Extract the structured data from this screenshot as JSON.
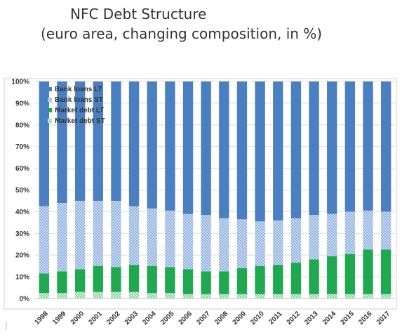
{
  "chart_data": {
    "type": "bar",
    "stacked": true,
    "title": "NFC Debt Structure",
    "subtitle": "(euro area, changing composition, in %)",
    "xlabel": "",
    "ylabel": "",
    "ylim": [
      0,
      100
    ],
    "yticks": [
      "0%",
      "10%",
      "20%",
      "30%",
      "40%",
      "50%",
      "60%",
      "70%",
      "80%",
      "90%",
      "100%"
    ],
    "grid": true,
    "legend_position": "top-left",
    "categories": [
      "1998",
      "1999",
      "2000",
      "2001",
      "2002",
      "2003",
      "2004",
      "2005",
      "2006",
      "2007",
      "2008",
      "2009",
      "2010",
      "2011",
      "2012",
      "2013",
      "2014",
      "2015",
      "2016",
      "2017"
    ],
    "series": [
      {
        "name": "Market debt ST",
        "color": "#b9e6cc",
        "pattern": "dots",
        "values": [
          2.5,
          2.5,
          3,
          3,
          3,
          3,
          2.5,
          2.5,
          2,
          2,
          2,
          2,
          2,
          2,
          2,
          2,
          2,
          2,
          2,
          2
        ]
      },
      {
        "name": "Market debt LT",
        "color": "#1fa84f",
        "pattern": "solid",
        "values": [
          9,
          10,
          10.5,
          12,
          11.5,
          12.5,
          12.5,
          12,
          11.5,
          10.5,
          10.5,
          12,
          13,
          13.5,
          14.5,
          16,
          17.5,
          18.5,
          20.5,
          20.5
        ]
      },
      {
        "name": "Bank loans ST",
        "color": "#a9c5ea",
        "pattern": "dots",
        "values": [
          31,
          31.5,
          31.5,
          30,
          30.5,
          27,
          26.5,
          26,
          25.5,
          26,
          24.5,
          22.5,
          20.5,
          20.5,
          20.5,
          20.5,
          19.5,
          19.5,
          18,
          17.5
        ]
      },
      {
        "name": "Bank loans LT",
        "color": "#4a7fc1",
        "pattern": "solid",
        "values": [
          57.5,
          56,
          55,
          55,
          55,
          57.5,
          58.5,
          59.5,
          61,
          61.5,
          63,
          63.5,
          64.5,
          64,
          63,
          61.5,
          61,
          60,
          59.5,
          60
        ]
      }
    ],
    "legend_order": [
      "Bank loans LT",
      "Bank loans ST",
      "Market debt LT",
      "Market debt ST"
    ]
  }
}
